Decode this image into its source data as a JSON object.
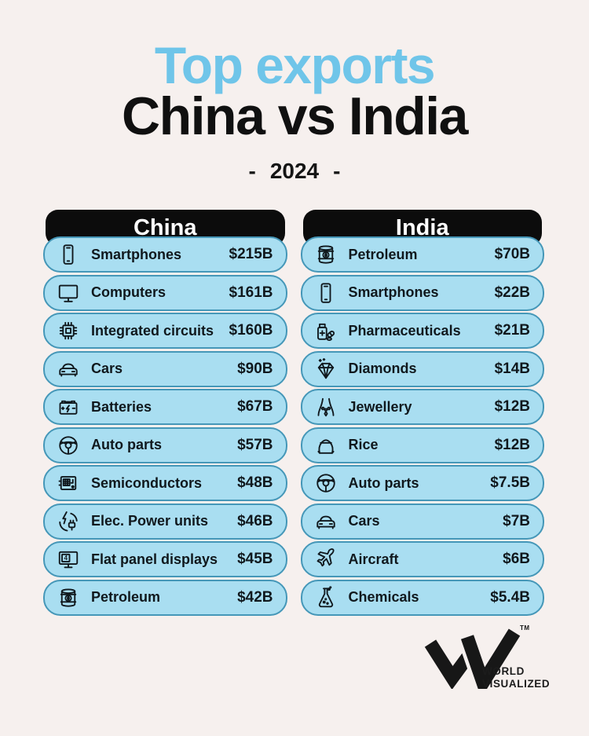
{
  "title": {
    "line1": "Top exports",
    "line2": "China vs India",
    "year": "2024",
    "dash": "-"
  },
  "colors": {
    "accent_blue": "#6fc5e9",
    "pill_fill": "#a9def1",
    "pill_border": "#4597b8",
    "header_black": "#0c0c0c",
    "background": "#f6f0ee"
  },
  "columns": [
    {
      "name": "China",
      "rows": [
        {
          "icon": "smartphone-icon",
          "label": "Smartphones",
          "value": "$215B"
        },
        {
          "icon": "computer-icon",
          "label": "Computers",
          "value": "$161B"
        },
        {
          "icon": "integrated-circuit-icon",
          "label": "Integrated circuits",
          "value": "$160B"
        },
        {
          "icon": "car-icon",
          "label": "Cars",
          "value": "$90B"
        },
        {
          "icon": "battery-icon",
          "label": "Batteries",
          "value": "$67B"
        },
        {
          "icon": "steering-wheel-icon",
          "label": "Auto parts",
          "value": "$57B"
        },
        {
          "icon": "semiconductor-icon",
          "label": "Semiconductors",
          "value": "$48B"
        },
        {
          "icon": "power-plug-icon",
          "label": "Elec. Power units",
          "value": "$46B"
        },
        {
          "icon": "flat-panel-icon",
          "label": "Flat panel displays",
          "value": "$45B"
        },
        {
          "icon": "oil-barrel-icon",
          "label": "Petroleum",
          "value": "$42B"
        }
      ]
    },
    {
      "name": "India",
      "rows": [
        {
          "icon": "oil-barrel-icon",
          "label": "Petroleum",
          "value": "$70B"
        },
        {
          "icon": "smartphone-icon",
          "label": "Smartphones",
          "value": "$22B"
        },
        {
          "icon": "pharmaceuticals-icon",
          "label": "Pharmaceuticals",
          "value": "$21B"
        },
        {
          "icon": "diamond-icon",
          "label": "Diamonds",
          "value": "$14B"
        },
        {
          "icon": "necklace-icon",
          "label": "Jewellery",
          "value": "$12B"
        },
        {
          "icon": "rice-sack-icon",
          "label": "Rice",
          "value": "$12B"
        },
        {
          "icon": "steering-wheel-icon",
          "label": "Auto parts",
          "value": "$7.5B"
        },
        {
          "icon": "car-icon",
          "label": "Cars",
          "value": "$7B"
        },
        {
          "icon": "aircraft-icon",
          "label": "Aircraft",
          "value": "$6B"
        },
        {
          "icon": "flask-icon",
          "label": "Chemicals",
          "value": "$5.4B"
        }
      ]
    }
  ],
  "footer": {
    "brand_line1": "WORLD",
    "brand_line2": "VISUALIZED",
    "trademark": "TM"
  },
  "chart_data": {
    "type": "table",
    "title": "Top exports China vs India",
    "subtitle": "2024",
    "unit": "USD billions",
    "groups": [
      {
        "name": "China",
        "categories": [
          "Smartphones",
          "Computers",
          "Integrated circuits",
          "Cars",
          "Batteries",
          "Auto parts",
          "Semiconductors",
          "Elec. Power units",
          "Flat panel displays",
          "Petroleum"
        ],
        "values": [
          215,
          161,
          160,
          90,
          67,
          57,
          48,
          46,
          45,
          42
        ]
      },
      {
        "name": "India",
        "categories": [
          "Petroleum",
          "Smartphones",
          "Pharmaceuticals",
          "Diamonds",
          "Jewellery",
          "Rice",
          "Auto parts",
          "Cars",
          "Aircraft",
          "Chemicals"
        ],
        "values": [
          70,
          22,
          21,
          14,
          12,
          12,
          7.5,
          7,
          6,
          5.4
        ]
      }
    ]
  }
}
